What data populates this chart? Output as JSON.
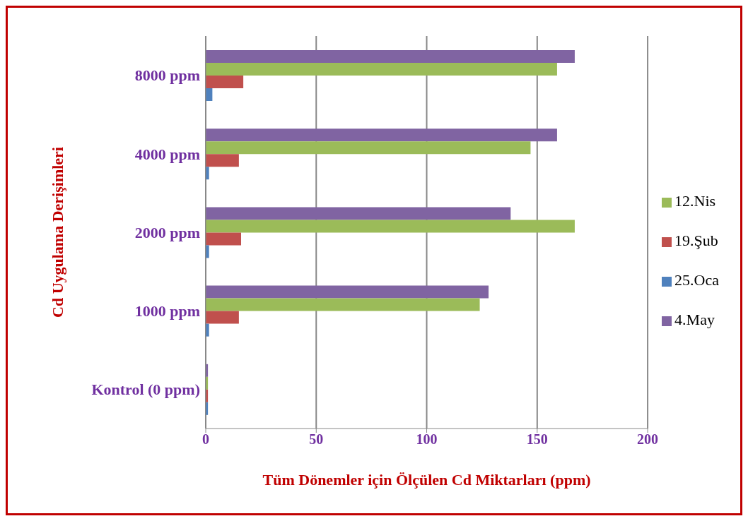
{
  "chart_data": {
    "type": "bar",
    "orientation": "horizontal",
    "xlabel": "Tüm Dönemler için Ölçülen Cd Miktarları (ppm)",
    "ylabel": "Cd  Uygulama Derişimleri",
    "categories": [
      "8000 ppm",
      "4000 ppm",
      "2000 ppm",
      "1000 ppm",
      "Kontrol (0 ppm)"
    ],
    "series": [
      {
        "name": "4.May",
        "color": "#8064a2",
        "values": [
          167,
          159,
          138,
          128,
          1
        ]
      },
      {
        "name": "12.Nis",
        "color": "#9bbb59",
        "values": [
          159,
          147,
          167,
          124,
          1
        ]
      },
      {
        "name": "19.Şub",
        "color": "#c0504d",
        "values": [
          17,
          15,
          16,
          15,
          1
        ]
      },
      {
        "name": "25.Oca",
        "color": "#4f81bd",
        "values": [
          3,
          1.5,
          1.5,
          1.5,
          1
        ]
      }
    ],
    "xlim": [
      0,
      200
    ],
    "xticks": [
      0,
      50,
      100,
      150,
      200
    ],
    "grid": "x",
    "legend": "right"
  }
}
